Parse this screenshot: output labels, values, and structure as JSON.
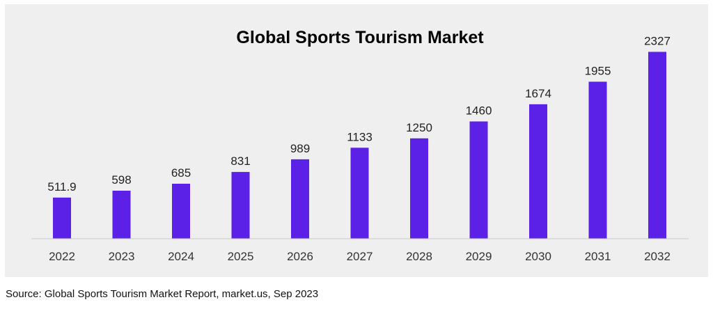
{
  "chart_data": {
    "type": "bar",
    "title": "Global Sports Tourism Market",
    "categories": [
      "2022",
      "2023",
      "2024",
      "2025",
      "2026",
      "2027",
      "2028",
      "2029",
      "2030",
      "2031",
      "2032"
    ],
    "values": [
      511.9,
      598,
      685,
      831,
      989,
      1133,
      1250,
      1460,
      1674,
      1955,
      2327
    ],
    "value_labels": [
      "511.9",
      "598",
      "685",
      "831",
      "989",
      "1133",
      "1250",
      "1460",
      "1674",
      "1955",
      "2327"
    ],
    "xlabel": "",
    "ylabel": "",
    "ylim": [
      0,
      2600
    ],
    "grid": false,
    "legend": "none",
    "bar_color": "#5b21e6",
    "background_color": "#efefef"
  },
  "source": "Source: Global Sports Tourism Market Report, market.us, Sep 2023"
}
